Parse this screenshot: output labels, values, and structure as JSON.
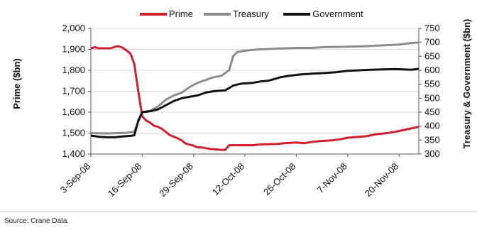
{
  "source": "Source: Crane Data.",
  "chart_data": {
    "type": "line",
    "y_left_label": "Prime ($bn)",
    "y_right_label": "Treasury & Government ($bn)",
    "y_left_range": [
      1400,
      2000
    ],
    "y_left_ticks": [
      "1,400",
      "1,500",
      "1,600",
      "1,700",
      "1,800",
      "1,900",
      "2,000"
    ],
    "y_right_range": [
      300,
      750
    ],
    "y_right_ticks": [
      "300",
      "350",
      "400",
      "450",
      "500",
      "550",
      "600",
      "650",
      "700",
      "750"
    ],
    "x_tick_labels": [
      "3-Sep-08",
      "16-Sep-08",
      "29-Sep-08",
      "12-Oct-08",
      "25-Oct-08",
      "7-Nov-08",
      "20-Nov-08"
    ],
    "x_tick_dates": [
      "2008-09-03",
      "2008-09-16",
      "2008-09-29",
      "2008-10-12",
      "2008-10-25",
      "2008-11-07",
      "2008-11-20"
    ],
    "x_range": [
      "2008-09-03",
      "2008-11-25"
    ],
    "grid": "horizontal",
    "legend_position": "top",
    "series": [
      {
        "name": "Prime",
        "axis": "left",
        "color": "#d11f2e",
        "points": [
          [
            "2008-09-03",
            1905
          ],
          [
            "2008-09-04",
            1910
          ],
          [
            "2008-09-05",
            1905
          ],
          [
            "2008-09-08",
            1905
          ],
          [
            "2008-09-09",
            1912
          ],
          [
            "2008-09-10",
            1915
          ],
          [
            "2008-09-11",
            1908
          ],
          [
            "2008-09-12",
            1895
          ],
          [
            "2008-09-13",
            1880
          ],
          [
            "2008-09-14",
            1830
          ],
          [
            "2008-09-15",
            1700
          ],
          [
            "2008-09-16",
            1580
          ],
          [
            "2008-09-17",
            1560
          ],
          [
            "2008-09-18",
            1550
          ],
          [
            "2008-09-19",
            1535
          ],
          [
            "2008-09-20",
            1530
          ],
          [
            "2008-09-21",
            1520
          ],
          [
            "2008-09-22",
            1505
          ],
          [
            "2008-09-23",
            1490
          ],
          [
            "2008-09-25",
            1475
          ],
          [
            "2008-09-26",
            1465
          ],
          [
            "2008-09-27",
            1450
          ],
          [
            "2008-09-29",
            1440
          ],
          [
            "2008-09-30",
            1432
          ],
          [
            "2008-10-01",
            1432
          ],
          [
            "2008-10-02",
            1428
          ],
          [
            "2008-10-03",
            1425
          ],
          [
            "2008-10-06",
            1420
          ],
          [
            "2008-10-07",
            1420
          ],
          [
            "2008-10-08",
            1442
          ],
          [
            "2008-10-10",
            1442
          ],
          [
            "2008-10-14",
            1442
          ],
          [
            "2008-10-16",
            1446
          ],
          [
            "2008-10-20",
            1448
          ],
          [
            "2008-10-22",
            1452
          ],
          [
            "2008-10-25",
            1455
          ],
          [
            "2008-10-27",
            1452
          ],
          [
            "2008-10-29",
            1458
          ],
          [
            "2008-10-31",
            1462
          ],
          [
            "2008-11-03",
            1465
          ],
          [
            "2008-11-05",
            1470
          ],
          [
            "2008-11-07",
            1478
          ],
          [
            "2008-11-10",
            1482
          ],
          [
            "2008-11-12",
            1486
          ],
          [
            "2008-11-14",
            1494
          ],
          [
            "2008-11-17",
            1500
          ],
          [
            "2008-11-19",
            1506
          ],
          [
            "2008-11-21",
            1514
          ],
          [
            "2008-11-23",
            1522
          ],
          [
            "2008-11-25",
            1530
          ]
        ]
      },
      {
        "name": "Treasury",
        "axis": "right",
        "color": "#8c8c8c",
        "points": [
          [
            "2008-09-03",
            375
          ],
          [
            "2008-09-05",
            374
          ],
          [
            "2008-09-08",
            374
          ],
          [
            "2008-09-10",
            375
          ],
          [
            "2008-09-12",
            376
          ],
          [
            "2008-09-14",
            380
          ],
          [
            "2008-09-15",
            415
          ],
          [
            "2008-09-16",
            450
          ],
          [
            "2008-09-18",
            455
          ],
          [
            "2008-09-20",
            470
          ],
          [
            "2008-09-22",
            495
          ],
          [
            "2008-09-24",
            510
          ],
          [
            "2008-09-26",
            520
          ],
          [
            "2008-09-28",
            540
          ],
          [
            "2008-09-30",
            555
          ],
          [
            "2008-10-02",
            565
          ],
          [
            "2008-10-04",
            575
          ],
          [
            "2008-10-06",
            580
          ],
          [
            "2008-10-08",
            600
          ],
          [
            "2008-10-09",
            650
          ],
          [
            "2008-10-10",
            665
          ],
          [
            "2008-10-12",
            670
          ],
          [
            "2008-10-14",
            673
          ],
          [
            "2008-10-16",
            675
          ],
          [
            "2008-10-18",
            676
          ],
          [
            "2008-10-21",
            678
          ],
          [
            "2008-10-25",
            680
          ],
          [
            "2008-10-29",
            680
          ],
          [
            "2008-11-01",
            683
          ],
          [
            "2008-11-05",
            684
          ],
          [
            "2008-11-08",
            685
          ],
          [
            "2008-11-11",
            686
          ],
          [
            "2008-11-14",
            688
          ],
          [
            "2008-11-17",
            690
          ],
          [
            "2008-11-20",
            692
          ],
          [
            "2008-11-23",
            697
          ],
          [
            "2008-11-25",
            700
          ]
        ]
      },
      {
        "name": "Government",
        "axis": "right",
        "color": "#111111",
        "points": [
          [
            "2008-09-03",
            366
          ],
          [
            "2008-09-05",
            362
          ],
          [
            "2008-09-07",
            360
          ],
          [
            "2008-09-09",
            360
          ],
          [
            "2008-09-11",
            363
          ],
          [
            "2008-09-13",
            365
          ],
          [
            "2008-09-14",
            367
          ],
          [
            "2008-09-15",
            420
          ],
          [
            "2008-09-16",
            450
          ],
          [
            "2008-09-18",
            453
          ],
          [
            "2008-09-20",
            460
          ],
          [
            "2008-09-22",
            475
          ],
          [
            "2008-09-24",
            490
          ],
          [
            "2008-09-26",
            500
          ],
          [
            "2008-09-28",
            505
          ],
          [
            "2008-09-30",
            510
          ],
          [
            "2008-10-02",
            520
          ],
          [
            "2008-10-04",
            525
          ],
          [
            "2008-10-07",
            528
          ],
          [
            "2008-10-09",
            545
          ],
          [
            "2008-10-11",
            552
          ],
          [
            "2008-10-14",
            555
          ],
          [
            "2008-10-16",
            560
          ],
          [
            "2008-10-18",
            563
          ],
          [
            "2008-10-21",
            575
          ],
          [
            "2008-10-23",
            580
          ],
          [
            "2008-10-26",
            585
          ],
          [
            "2008-10-29",
            588
          ],
          [
            "2008-11-01",
            590
          ],
          [
            "2008-11-04",
            593
          ],
          [
            "2008-11-07",
            598
          ],
          [
            "2008-11-10",
            600
          ],
          [
            "2008-11-13",
            602
          ],
          [
            "2008-11-16",
            603
          ],
          [
            "2008-11-19",
            604
          ],
          [
            "2008-11-21",
            603
          ],
          [
            "2008-11-23",
            602
          ],
          [
            "2008-11-25",
            605
          ]
        ]
      }
    ]
  }
}
